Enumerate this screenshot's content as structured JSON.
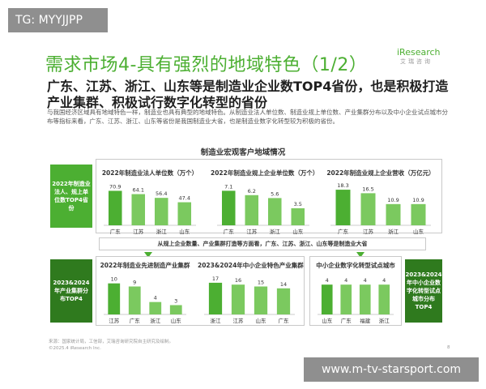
{
  "watermark_tg": "TG: MYYJJPP",
  "watermark_url": "www.m-tv-starsport.com",
  "logo": {
    "text": "iResearch",
    "sub": "艾瑞咨询"
  },
  "title": "需求市场4-具有强烈的地域特色（1/2）",
  "headline": "广东、江苏、浙江、山东等是制造业企业数TOP4省份，也是积极打造产业集群、积极试行数字化转型的省份",
  "description": "与我国经济区域具有地域特色一样，制造业也具有典型的地域特色。从制造业法人单位数、制造业规上单位数、产业集群分布以及中小企业试点城市分布等指标来看，广东、江苏、浙江、山东等省份是我国制造业大省，也是制造业数字化转型较为积极的省份。",
  "section_title": "制造业宏观客户地域情况",
  "side_labels": {
    "top": "2022年制造业法人、规上单位数TOP4省份",
    "bottom_left": "2023&2024年产业集群分布TOP4",
    "bottom_right": "2023&2024年中小企业数字化转型试点城市分布TOP4"
  },
  "mid_banner": "从规上企业数量、产业集群打造等方面看，广东、江苏、浙江、山东等是制造业大省",
  "footer": {
    "source": "来源：国家统计局，工信部，艾瑞咨询研究院自主研究及绘制。",
    "copyright": "©2025.4 iResearch Inc."
  },
  "page_number": "8",
  "colors": {
    "accent": "#4caf32",
    "dark_accent": "#2f7a1e",
    "light_bar": "#7bc95f"
  },
  "chart_data": [
    {
      "type": "bar",
      "title": "2022年制造业法人单位数（万个）",
      "categories": [
        "广东",
        "江苏",
        "浙江",
        "山东"
      ],
      "values": [
        70.9,
        64.1,
        56.4,
        47.4
      ],
      "ylim": [
        0,
        80
      ]
    },
    {
      "type": "bar",
      "title": "2022年制造业规上企业单位数（万个）",
      "categories": [
        "广东",
        "江苏",
        "浙江",
        "山东"
      ],
      "values": [
        7.1,
        6.2,
        5.6,
        3.5
      ],
      "ylim": [
        0,
        8
      ]
    },
    {
      "type": "bar",
      "title": "2022年制造业规上企业营收（万亿元）",
      "categories": [
        "广东",
        "江苏",
        "浙江",
        "山东"
      ],
      "values": [
        18.3,
        16.5,
        10.9,
        10.9
      ],
      "ylim": [
        0,
        20
      ]
    },
    {
      "type": "bar",
      "title": "2022年制造业先进制造产业集群",
      "categories": [
        "江苏",
        "广东",
        "浙江",
        "山东"
      ],
      "values": [
        10,
        9,
        4,
        3
      ],
      "ylim": [
        0,
        12
      ]
    },
    {
      "type": "bar",
      "title": "2023&2024年中小企业特色产业集群",
      "categories": [
        "浙江",
        "江苏",
        "山东",
        "广东"
      ],
      "values": [
        17,
        16,
        15,
        14
      ],
      "ylim": [
        0,
        20
      ]
    },
    {
      "type": "bar",
      "title": "中小企业数字化转型试点城市",
      "categories": [
        "山东",
        "广东",
        "福建",
        "浙江"
      ],
      "values": [
        4,
        4,
        4,
        4
      ],
      "ylim": [
        0,
        5
      ]
    }
  ]
}
